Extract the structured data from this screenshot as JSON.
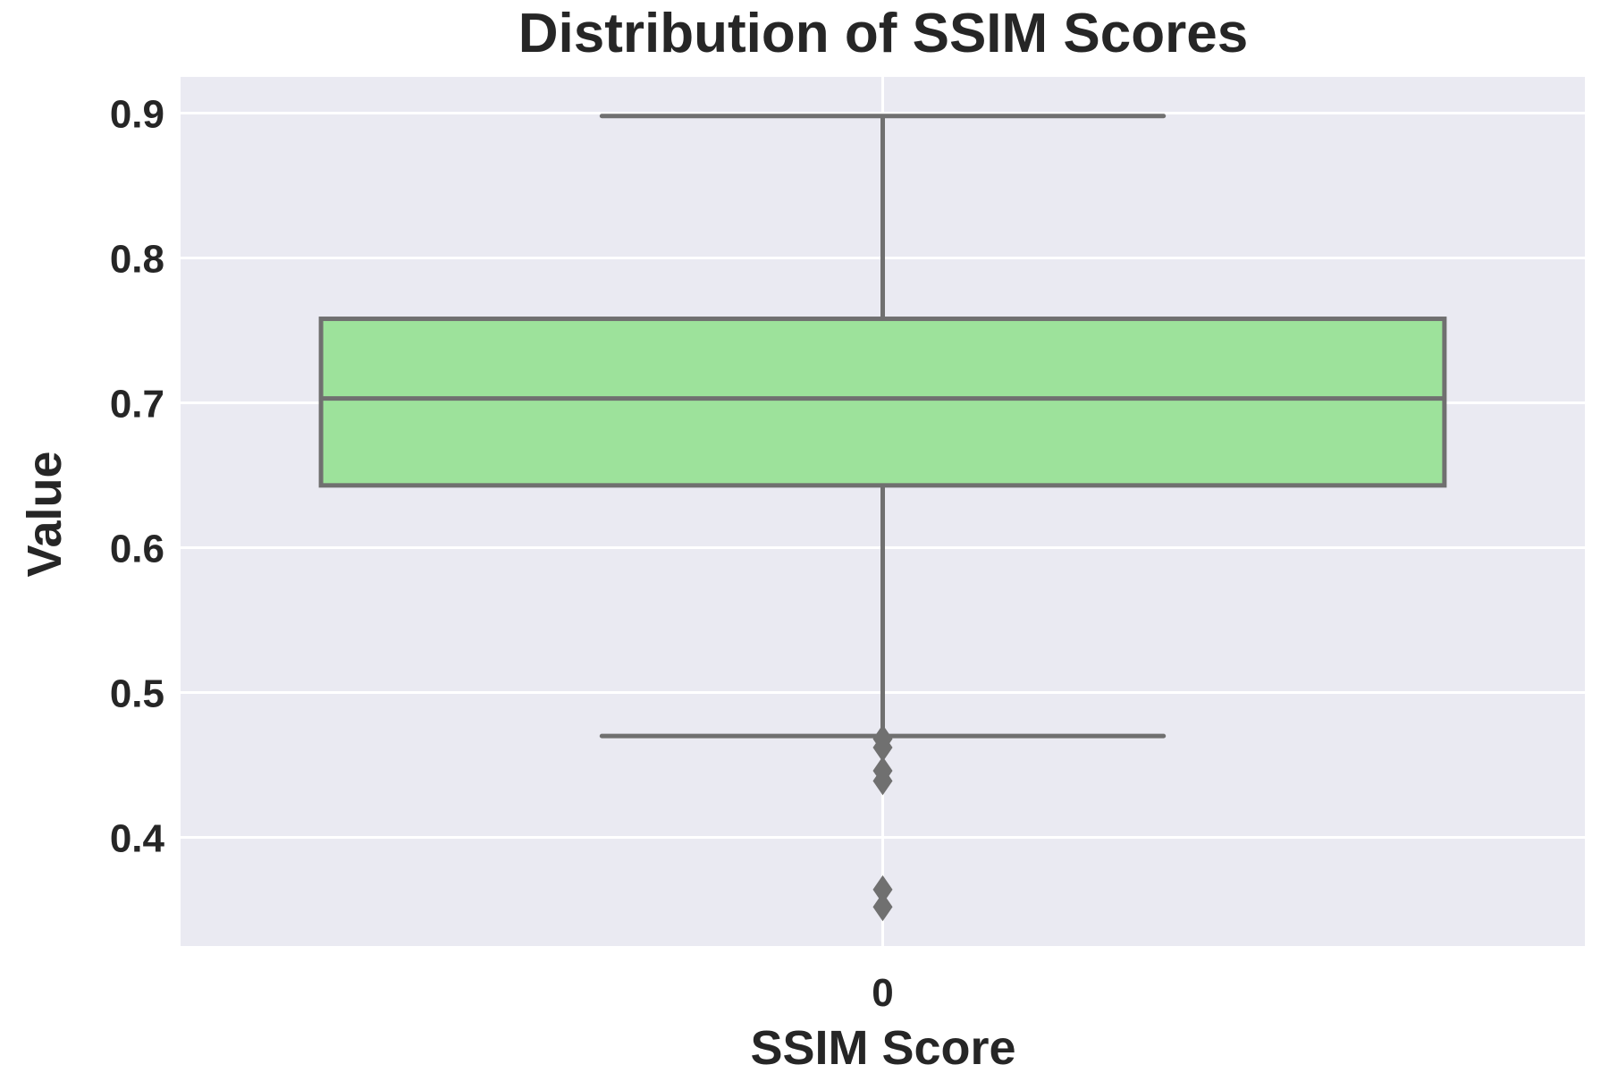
{
  "chart_data": {
    "type": "box",
    "title": "Distribution of SSIM Scores",
    "xlabel": "SSIM Score",
    "ylabel": "Value",
    "categories": [
      "0"
    ],
    "ylim": [
      0.325,
      0.925
    ],
    "yticks": [
      "0.4",
      "0.5",
      "0.6",
      "0.7",
      "0.8",
      "0.9"
    ],
    "grid": true,
    "boxes": [
      {
        "category": "0",
        "whisker_low": 0.47,
        "q1": 0.643,
        "median": 0.703,
        "q3": 0.758,
        "whisker_high": 0.898,
        "outliers": [
          0.468,
          0.462,
          0.446,
          0.439,
          0.364,
          0.352
        ]
      }
    ],
    "colors": {
      "box_fill": "#9de29b",
      "lines": "#707070",
      "plot_bg": "#eaeaf2",
      "grid": "#ffffff"
    }
  }
}
